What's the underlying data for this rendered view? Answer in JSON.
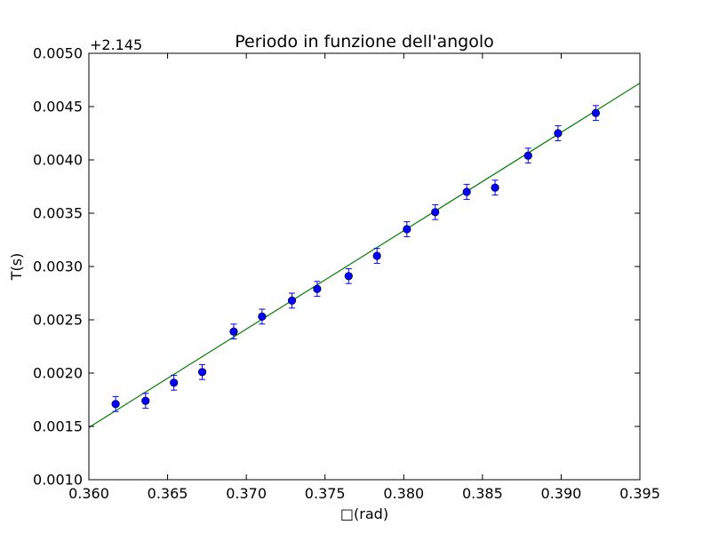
{
  "chart_data": {
    "type": "scatter",
    "title": "Periodo in funzione dell'angolo",
    "xlabel": "□(rad)",
    "ylabel": "T(s)",
    "y_offset_label": "+2.145",
    "xlim": [
      0.36,
      0.395
    ],
    "ylim": [
      0.001,
      0.005
    ],
    "x_ticks": [
      "0.360",
      "0.365",
      "0.370",
      "0.375",
      "0.380",
      "0.385",
      "0.390",
      "0.395"
    ],
    "y_ticks": [
      "0.0010",
      "0.0015",
      "0.0020",
      "0.0025",
      "0.0030",
      "0.0035",
      "0.0040",
      "0.0045",
      "0.0050"
    ],
    "grid": false,
    "series": [
      {
        "kind": "errorbar",
        "color": "#0000ff",
        "points": [
          {
            "x": 0.3617,
            "y": 0.00171,
            "err": 7e-05
          },
          {
            "x": 0.3636,
            "y": 0.00174,
            "err": 7e-05
          },
          {
            "x": 0.3654,
            "y": 0.00191,
            "err": 7e-05
          },
          {
            "x": 0.3672,
            "y": 0.00201,
            "err": 7e-05
          },
          {
            "x": 0.3692,
            "y": 0.00239,
            "err": 7e-05
          },
          {
            "x": 0.371,
            "y": 0.00253,
            "err": 7e-05
          },
          {
            "x": 0.3729,
            "y": 0.00268,
            "err": 7e-05
          },
          {
            "x": 0.3745,
            "y": 0.00279,
            "err": 7e-05
          },
          {
            "x": 0.3765,
            "y": 0.00291,
            "err": 7e-05
          },
          {
            "x": 0.3783,
            "y": 0.0031,
            "err": 7e-05
          },
          {
            "x": 0.3802,
            "y": 0.00335,
            "err": 7e-05
          },
          {
            "x": 0.382,
            "y": 0.00351,
            "err": 7e-05
          },
          {
            "x": 0.384,
            "y": 0.0037,
            "err": 7e-05
          },
          {
            "x": 0.3858,
            "y": 0.00374,
            "err": 7e-05
          },
          {
            "x": 0.3879,
            "y": 0.00404,
            "err": 7e-05
          },
          {
            "x": 0.3898,
            "y": 0.00425,
            "err": 7e-05
          },
          {
            "x": 0.3922,
            "y": 0.00444,
            "err": 7e-05
          }
        ]
      },
      {
        "kind": "line",
        "color": "#008000",
        "x": [
          0.36,
          0.395
        ],
        "y": [
          0.00149,
          0.00472
        ]
      }
    ]
  }
}
